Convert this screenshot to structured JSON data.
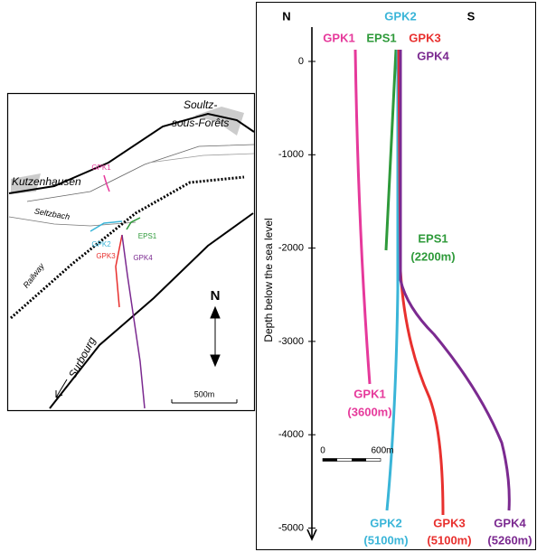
{
  "map": {
    "town_soultz": [
      "Soultz-",
      "sous-Forêts"
    ],
    "town_kutzenhausen": "Kutzenhausen",
    "river": "Seltzbach",
    "railway": "Railway",
    "town_surbourg": "Surbourg",
    "north": "N",
    "scale": "500m",
    "wells": {
      "gpk1": "GPK1",
      "gpk2": "GPK2",
      "gpk3": "GPK3",
      "gpk4": "GPK4",
      "eps1": "EPS1"
    }
  },
  "section": {
    "left_direction": "N",
    "right_direction": "S",
    "axis_label": "Depth below the sea level",
    "ticks": [
      0,
      -1000,
      -2000,
      -3000,
      -4000,
      -5000
    ],
    "scale_bar": {
      "start": "0",
      "end": "600m"
    },
    "top_labels": {
      "gpk1": "GPK1",
      "eps1": "EPS1",
      "gpk2": "GPK2",
      "gpk3": "GPK3",
      "gpk4": "GPK4"
    },
    "end_labels": {
      "eps1": [
        "EPS1",
        "(2200m)"
      ],
      "gpk1": [
        "GPK1",
        "(3600m)"
      ],
      "gpk2": [
        "GPK2",
        "(5100m)"
      ],
      "gpk3": [
        "GPK3",
        "(5100m)"
      ],
      "gpk4": [
        "GPK4",
        "(5260m)"
      ]
    }
  }
}
